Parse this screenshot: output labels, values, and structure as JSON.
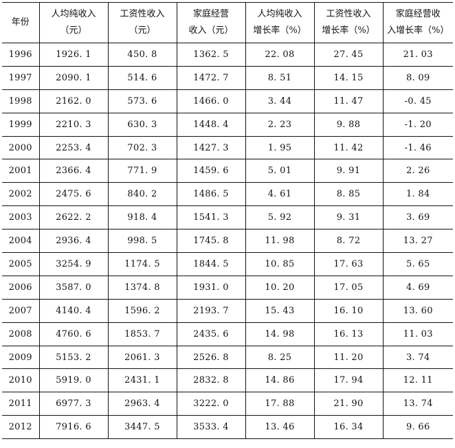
{
  "table": {
    "headers": [
      {
        "line1": "年份",
        "line2": ""
      },
      {
        "line1": "人均纯收入",
        "line2": "（元）"
      },
      {
        "line1": "工资性收入",
        "line2": "（元）"
      },
      {
        "line1": "家庭经营",
        "line2": "收入（元）"
      },
      {
        "line1": "人均纯收入",
        "line2": "增长率（%）"
      },
      {
        "line1": "工资性收入",
        "line2": "增长率（%）"
      },
      {
        "line1": "家庭经营收",
        "line2": "入增长率（%）"
      }
    ],
    "rows": [
      [
        "1996",
        "1926. 1",
        "450. 8",
        "1362. 5",
        "22. 08",
        "27. 45",
        "21. 03"
      ],
      [
        "1997",
        "2090. 1",
        "514. 6",
        "1472. 7",
        "8. 51",
        "14. 15",
        "8. 09"
      ],
      [
        "1998",
        "2162. 0",
        "573. 6",
        "1466. 0",
        "3. 44",
        "11. 47",
        "-0. 45"
      ],
      [
        "1999",
        "2210. 3",
        "630. 3",
        "1448. 4",
        "2. 23",
        "9. 88",
        "-1. 20"
      ],
      [
        "2000",
        "2253. 4",
        "702. 3",
        "1427. 3",
        "1. 95",
        "11. 42",
        "-1. 46"
      ],
      [
        "2001",
        "2366. 4",
        "771. 9",
        "1459. 6",
        "5. 01",
        "9. 91",
        "2. 26"
      ],
      [
        "2002",
        "2475. 6",
        "840. 2",
        "1486. 5",
        "4. 61",
        "8. 85",
        "1. 84"
      ],
      [
        "2003",
        "2622. 2",
        "918. 4",
        "1541. 3",
        "5. 92",
        "9. 31",
        "3. 69"
      ],
      [
        "2004",
        "2936. 4",
        "998. 5",
        "1745. 8",
        "11. 98",
        "8. 72",
        "13. 27"
      ],
      [
        "2005",
        "3254. 9",
        "1174. 5",
        "1844. 5",
        "10. 85",
        "17. 63",
        "5. 65"
      ],
      [
        "2006",
        "3587. 0",
        "1374. 8",
        "1931. 0",
        "10. 20",
        "17. 05",
        "4. 69"
      ],
      [
        "2007",
        "4140. 4",
        "1596. 2",
        "2193. 7",
        "15. 43",
        "16. 10",
        "13. 60"
      ],
      [
        "2008",
        "4760. 6",
        "1853. 7",
        "2435. 6",
        "14. 98",
        "16. 13",
        "11. 03"
      ],
      [
        "2009",
        "5153. 2",
        "2061. 3",
        "2526. 8",
        "8. 25",
        "11. 20",
        "3. 74"
      ],
      [
        "2010",
        "5919. 0",
        "2431. 1",
        "2832. 8",
        "14. 86",
        "17. 94",
        "12. 11"
      ],
      [
        "2011",
        "6977. 3",
        "2963. 4",
        "3222. 0",
        "17. 88",
        "21. 90",
        "13. 74"
      ],
      [
        "2012",
        "7916. 6",
        "3447. 5",
        "3533. 4",
        "13. 46",
        "16. 34",
        "9. 66"
      ]
    ]
  }
}
